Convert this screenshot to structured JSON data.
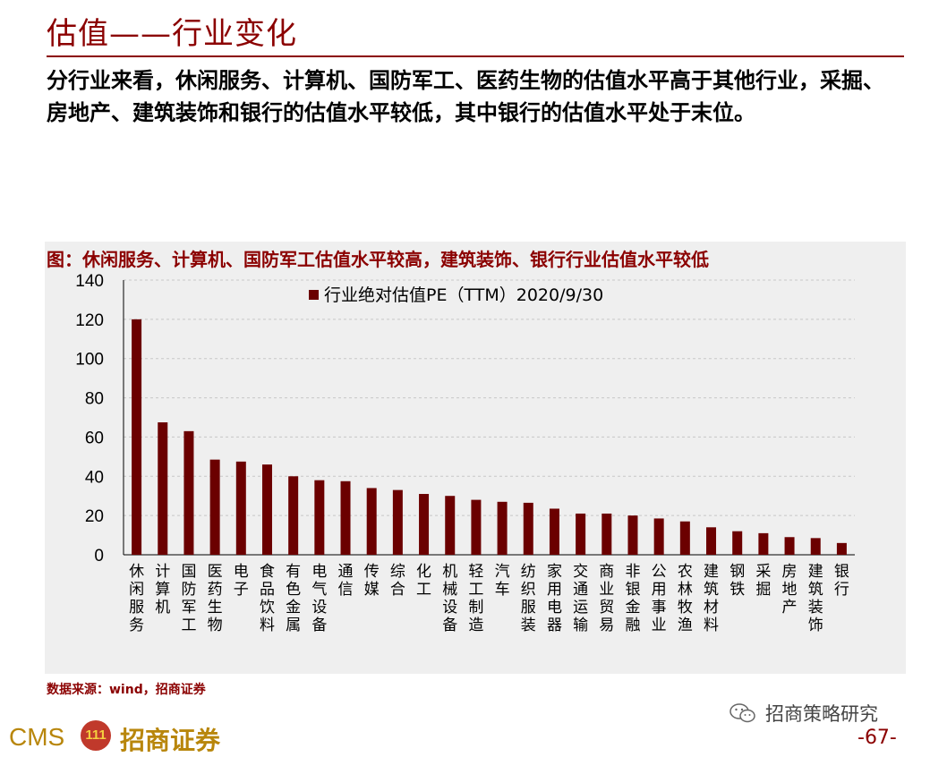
{
  "page": {
    "title": "估值——行业变化",
    "description": "分行业来看，休闲服务、计算机、国防军工、医药生物的估值水平高于其他行业，采掘、房地产、建筑装饰和银行的估值水平较低，其中银行的估值水平处于末位。",
    "figure_title": "图：休闲服务、计算机、国防军工估值水平较高，建筑装饰、银行行业估值水平较低",
    "source": "数据来源：wind，招商证券",
    "watermark": "招商策略研究",
    "page_number": "-67-",
    "logo_latin": "CMS",
    "logo_cn": "招商证券",
    "logo_badge": "111"
  },
  "colors": {
    "accent": "#8b0000",
    "bar": "#6b0000",
    "panel": "#efefef"
  },
  "chart_data": {
    "type": "bar",
    "legend_position": "top",
    "grid": true,
    "ylim": [
      0,
      140
    ],
    "yticks": [
      0,
      20,
      40,
      60,
      80,
      100,
      120,
      140
    ],
    "categories": [
      "休闲服务",
      "计算机",
      "国防军工",
      "医药生物",
      "电子",
      "食品饮料",
      "有色金属",
      "电气设备",
      "通信",
      "传媒",
      "综合",
      "化工",
      "机械设备",
      "轻工制造",
      "汽车",
      "纺织服装",
      "家用电器",
      "交通运输",
      "商业贸易",
      "非银金融",
      "公用事业",
      "农林牧渔",
      "建筑材料",
      "钢铁",
      "采掘",
      "房地产",
      "建筑装饰",
      "银行"
    ],
    "series": [
      {
        "name": "行业绝对估值PE（TTM）2020/9/30",
        "values": [
          120,
          67.5,
          63,
          48.5,
          47.5,
          46,
          40,
          38,
          37.5,
          34,
          33,
          31,
          30,
          28,
          27,
          26.5,
          23.5,
          21,
          21,
          20,
          18.5,
          17,
          14,
          12,
          11,
          9,
          8.5,
          6
        ]
      }
    ]
  }
}
